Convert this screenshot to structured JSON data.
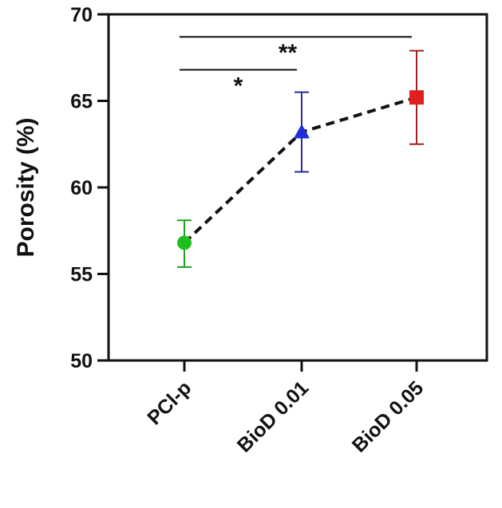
{
  "chart_data": {
    "type": "scatter",
    "title": "",
    "xlabel": "",
    "ylabel": "Porosity (%)",
    "ylim": [
      50,
      70
    ],
    "yticks": [
      50,
      55,
      60,
      65,
      70
    ],
    "grid": false,
    "legend": "none",
    "connector": "dashed",
    "categories": [
      "PCl-p",
      "BioD 0.01",
      "BioD 0.05"
    ],
    "points": [
      {
        "category": "PCl-p",
        "value": 56.8,
        "error_low": 55.4,
        "error_high": 58.1,
        "marker": "circle",
        "color": "#1fbf1f"
      },
      {
        "category": "BioD 0.01",
        "value": 63.2,
        "error_low": 60.9,
        "error_high": 65.5,
        "marker": "triangle",
        "color": "#1f2fd8"
      },
      {
        "category": "BioD 0.05",
        "value": 65.2,
        "error_low": 62.5,
        "error_high": 67.9,
        "marker": "square",
        "color": "#e01f1f"
      }
    ],
    "error_bar_colors": [
      "#1fa01f",
      "#2a2a9a",
      "#a02020"
    ],
    "significance": [
      {
        "from": "PCl-p",
        "to": "BioD 0.01",
        "label": "*",
        "level": 66.8
      },
      {
        "from": "PCl-p",
        "to": "BioD 0.05",
        "label": "**",
        "level": 68.7
      }
    ]
  }
}
